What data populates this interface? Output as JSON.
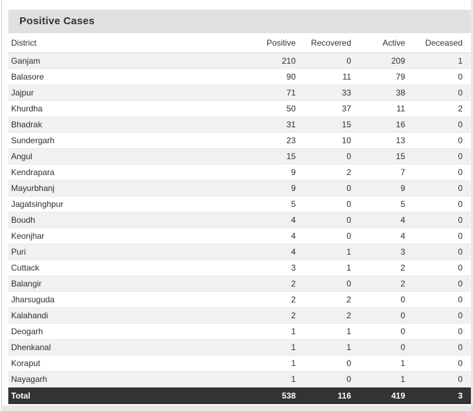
{
  "card": {
    "title": "Positive Cases"
  },
  "chart_data": {
    "type": "table",
    "title": "Positive Cases",
    "columns": [
      "District",
      "Positive",
      "Recovered",
      "Active",
      "Deceased"
    ],
    "rows": [
      [
        "Ganjam",
        210,
        0,
        209,
        1
      ],
      [
        "Balasore",
        90,
        11,
        79,
        0
      ],
      [
        "Jajpur",
        71,
        33,
        38,
        0
      ],
      [
        "Khurdha",
        50,
        37,
        11,
        2
      ],
      [
        "Bhadrak",
        31,
        15,
        16,
        0
      ],
      [
        "Sundergarh",
        23,
        10,
        13,
        0
      ],
      [
        "Angul",
        15,
        0,
        15,
        0
      ],
      [
        "Kendrapara",
        9,
        2,
        7,
        0
      ],
      [
        "Mayurbhanj",
        9,
        0,
        9,
        0
      ],
      [
        "Jagatsinghpur",
        5,
        0,
        5,
        0
      ],
      [
        "Boudh",
        4,
        0,
        4,
        0
      ],
      [
        "Keonjhar",
        4,
        0,
        4,
        0
      ],
      [
        "Puri",
        4,
        1,
        3,
        0
      ],
      [
        "Cuttack",
        3,
        1,
        2,
        0
      ],
      [
        "Balangir",
        2,
        0,
        2,
        0
      ],
      [
        "Jharsuguda",
        2,
        2,
        0,
        0
      ],
      [
        "Kalahandi",
        2,
        2,
        0,
        0
      ],
      [
        "Deogarh",
        1,
        1,
        0,
        0
      ],
      [
        "Dhenkanal",
        1,
        1,
        0,
        0
      ],
      [
        "Koraput",
        1,
        0,
        1,
        0
      ],
      [
        "Nayagarh",
        1,
        0,
        1,
        0
      ]
    ],
    "total_row": [
      "Total",
      538,
      116,
      419,
      3
    ],
    "layout_hints": {
      "striped_rows": true,
      "numeric_columns_right_aligned": true,
      "total_row_position": "bottom"
    }
  },
  "colors": {
    "title_bar_bg": "#e0e0e0",
    "title_text": "#333333",
    "header_text": "#333333",
    "cell_text": "#2e2e2e",
    "stripe_bg": "#f1f1f1",
    "row_border": "#eaeaea",
    "header_border": "#d9d9d9",
    "total_row_bg": "#333333",
    "total_row_text": "#ffffff",
    "page_bg": "#ffffff",
    "window_edge_line": "#c9c9c9",
    "bottom_strip_bg": "#e7e7e7"
  }
}
